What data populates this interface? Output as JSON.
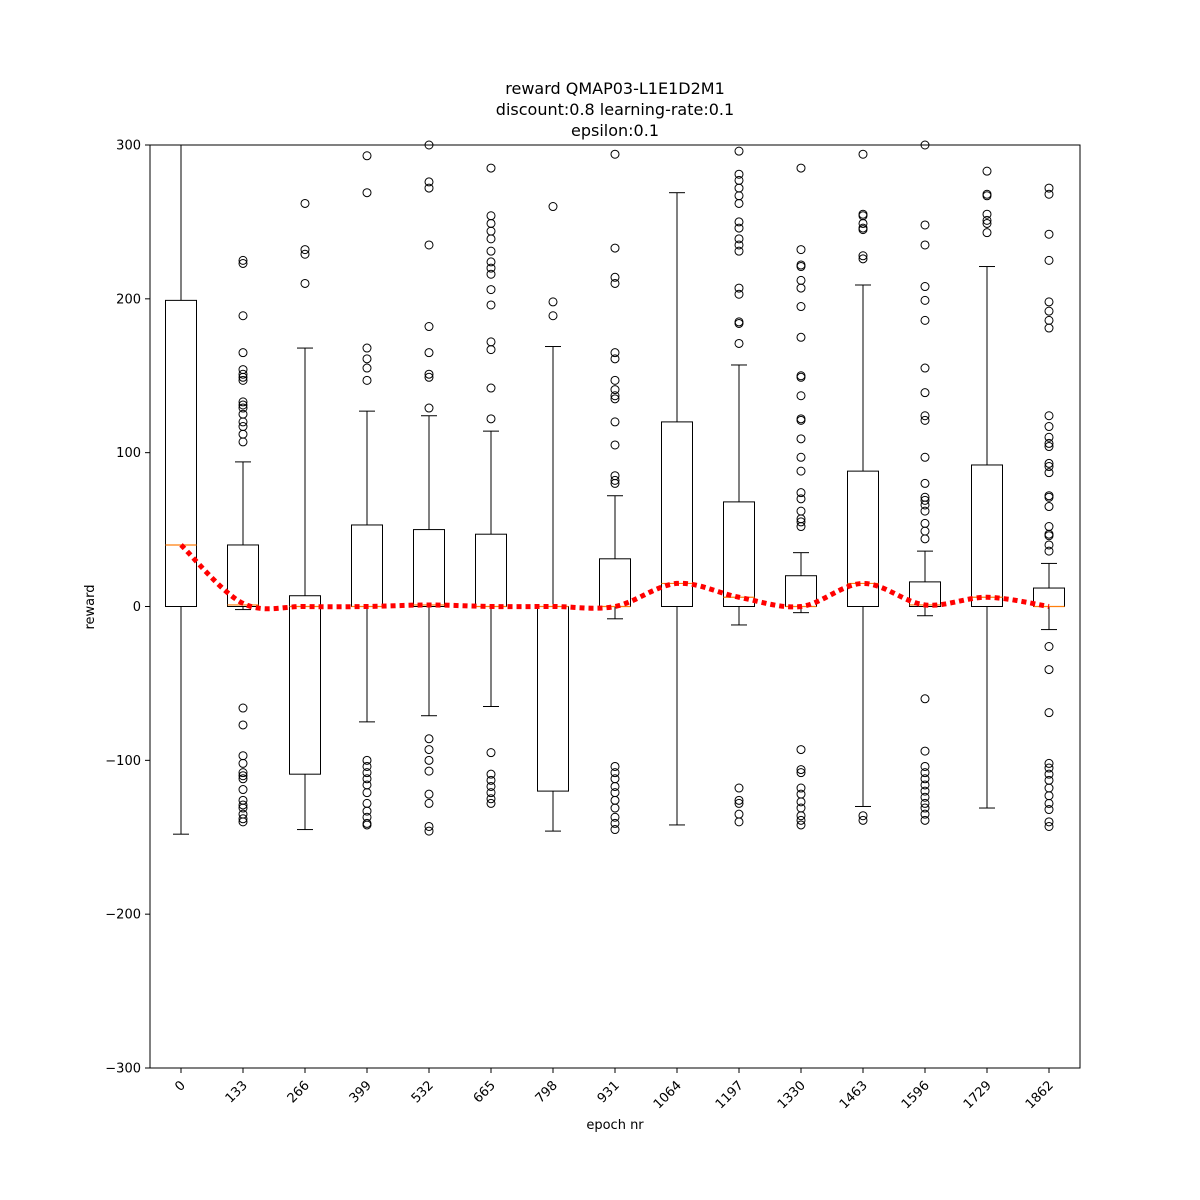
{
  "chart_data": {
    "type": "box",
    "title": [
      "reward QMAP03-L1E1D2M1",
      "discount:0.8 learning-rate:0.1",
      "epsilon:0.1"
    ],
    "xlabel": "epoch nr",
    "ylabel": "reward",
    "ylim": [
      -300,
      300
    ],
    "yticks": [
      -300,
      -200,
      -100,
      0,
      100,
      200,
      300
    ],
    "yticklabels": [
      "−300",
      "−200",
      "−100",
      "0",
      "100",
      "200",
      "300"
    ],
    "categories": [
      "0",
      "133",
      "266",
      "399",
      "532",
      "665",
      "798",
      "931",
      "1064",
      "1197",
      "1330",
      "1463",
      "1596",
      "1729",
      "1862"
    ],
    "colors": {
      "box": "#000000",
      "median": "#ff7f0e",
      "mean_line": "#ff0000"
    },
    "boxes": [
      {
        "epoch": "0",
        "q1": 0,
        "median": 40,
        "q3": 199,
        "whisker_low": -148,
        "whisker_high": 300,
        "outliers": []
      },
      {
        "epoch": "133",
        "q1": 0,
        "median": 1,
        "q3": 40,
        "whisker_low": -2,
        "whisker_high": 94,
        "outliers": [
          225,
          223,
          189,
          165,
          154,
          151,
          149,
          147,
          133,
          131,
          129,
          125,
          120,
          117,
          112,
          107,
          -66,
          -77,
          -97,
          -102,
          -108,
          -110,
          -112,
          -119,
          -126,
          -129,
          -131,
          -135,
          -138,
          -140
        ]
      },
      {
        "epoch": "266",
        "q1": -109,
        "median": 0,
        "q3": 7,
        "whisker_low": -145,
        "whisker_high": 168,
        "outliers": [
          262,
          232,
          229,
          210
        ]
      },
      {
        "epoch": "399",
        "q1": 0,
        "median": 0,
        "q3": 53,
        "whisker_low": -75,
        "whisker_high": 127,
        "outliers": [
          293,
          269,
          168,
          161,
          155,
          147,
          -100,
          -104,
          -108,
          -112,
          -116,
          -121,
          -128,
          -133,
          -137,
          -141,
          -142
        ]
      },
      {
        "epoch": "532",
        "q1": 0,
        "median": 1,
        "q3": 50,
        "whisker_low": -71,
        "whisker_high": 124,
        "outliers": [
          300,
          276,
          272,
          235,
          182,
          165,
          151,
          149,
          129,
          -86,
          -93,
          -100,
          -107,
          -122,
          -128,
          -143,
          -146
        ]
      },
      {
        "epoch": "665",
        "q1": 0,
        "median": 0,
        "q3": 47,
        "whisker_low": -65,
        "whisker_high": 114,
        "outliers": [
          285,
          254,
          249,
          244,
          239,
          231,
          224,
          220,
          216,
          206,
          196,
          172,
          167,
          142,
          122,
          -95,
          -109,
          -113,
          -117,
          -121,
          -125,
          -128
        ]
      },
      {
        "epoch": "798",
        "q1": -120,
        "median": 0,
        "q3": 0,
        "whisker_low": -146,
        "whisker_high": 169,
        "outliers": [
          260,
          198,
          189
        ]
      },
      {
        "epoch": "931",
        "q1": 0,
        "median": 0,
        "q3": 31,
        "whisker_low": -8,
        "whisker_high": 72,
        "outliers": [
          294,
          233,
          214,
          210,
          165,
          161,
          147,
          141,
          137,
          135,
          120,
          105,
          85,
          82,
          80,
          -104,
          -108,
          -112,
          -117,
          -121,
          -126,
          -131,
          -137,
          -141,
          -145
        ]
      },
      {
        "epoch": "1064",
        "q1": 0,
        "median": 15,
        "q3": 120,
        "whisker_low": -142,
        "whisker_high": 269,
        "outliers": []
      },
      {
        "epoch": "1197",
        "q1": 0,
        "median": 6,
        "q3": 68,
        "whisker_low": -12,
        "whisker_high": 157,
        "outliers": [
          296,
          281,
          277,
          272,
          267,
          262,
          250,
          246,
          239,
          235,
          231,
          207,
          203,
          185,
          184,
          171,
          -118,
          -126,
          -128,
          -135,
          -140
        ]
      },
      {
        "epoch": "1330",
        "q1": 0,
        "median": 0,
        "q3": 20,
        "whisker_low": -4,
        "whisker_high": 35,
        "outliers": [
          285,
          232,
          222,
          221,
          212,
          207,
          195,
          175,
          150,
          149,
          137,
          122,
          121,
          109,
          97,
          88,
          74,
          70,
          62,
          57,
          55,
          52,
          -93,
          -106,
          -108,
          -118,
          -122,
          -127,
          -131,
          -136,
          -139,
          -142
        ]
      },
      {
        "epoch": "1463",
        "q1": 0,
        "median": 15,
        "q3": 88,
        "whisker_low": -130,
        "whisker_high": 209,
        "outliers": [
          294,
          255,
          254,
          249,
          246,
          245,
          228,
          226,
          -136,
          -139
        ]
      },
      {
        "epoch": "1596",
        "q1": 0,
        "median": 1,
        "q3": 16,
        "whisker_low": -6,
        "whisker_high": 36,
        "outliers": [
          300,
          248,
          235,
          208,
          199,
          186,
          155,
          139,
          124,
          121,
          97,
          80,
          71,
          69,
          66,
          62,
          54,
          49,
          44,
          -60,
          -94,
          -104,
          -108,
          -112,
          -116,
          -120,
          -124,
          -128,
          -131,
          -135,
          -139
        ]
      },
      {
        "epoch": "1729",
        "q1": 0,
        "median": 6,
        "q3": 92,
        "whisker_low": -131,
        "whisker_high": 221,
        "outliers": [
          283,
          268,
          267,
          255,
          251,
          249,
          243
        ]
      },
      {
        "epoch": "1862",
        "q1": 0,
        "median": 0,
        "q3": 12,
        "whisker_low": -15,
        "whisker_high": 28,
        "outliers": [
          272,
          268,
          242,
          225,
          198,
          192,
          186,
          181,
          124,
          117,
          110,
          106,
          104,
          93,
          91,
          87,
          72,
          71,
          65,
          52,
          47,
          46,
          40,
          36,
          -26,
          -41,
          -69,
          -102,
          -105,
          -109,
          -113,
          -118,
          -123,
          -128,
          -132,
          -140,
          -143
        ]
      }
    ],
    "mean_line": {
      "style": "dotted",
      "values": [
        40,
        2,
        0,
        0,
        1,
        0,
        0,
        0,
        15,
        6,
        0,
        15,
        1,
        6,
        0
      ]
    }
  }
}
